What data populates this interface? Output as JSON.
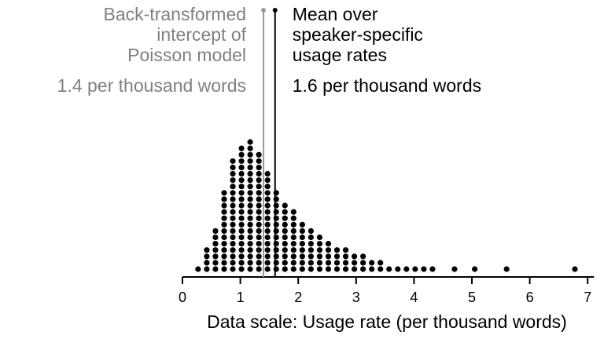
{
  "chart_data": {
    "type": "dotplot",
    "xlabel": "Data scale: Usage rate (per thousand words)",
    "xlim": [
      0,
      7
    ],
    "x_ticks": [
      0,
      1,
      2,
      3,
      4,
      5,
      6,
      7
    ],
    "x_tick_labels": [
      "0",
      "1",
      "2",
      "3",
      "4",
      "5",
      "6",
      "7"
    ],
    "bin_width": 0.15,
    "columns": [
      {
        "x": 0.27,
        "count": 1
      },
      {
        "x": 0.42,
        "count": 4
      },
      {
        "x": 0.57,
        "count": 7
      },
      {
        "x": 0.72,
        "count": 13
      },
      {
        "x": 0.87,
        "count": 18
      },
      {
        "x": 1.02,
        "count": 20
      },
      {
        "x": 1.17,
        "count": 21
      },
      {
        "x": 1.32,
        "count": 19
      },
      {
        "x": 1.47,
        "count": 16
      },
      {
        "x": 1.62,
        "count": 13
      },
      {
        "x": 1.77,
        "count": 11
      },
      {
        "x": 1.92,
        "count": 10
      },
      {
        "x": 2.07,
        "count": 8
      },
      {
        "x": 2.22,
        "count": 7
      },
      {
        "x": 2.37,
        "count": 6
      },
      {
        "x": 2.52,
        "count": 5
      },
      {
        "x": 2.67,
        "count": 4
      },
      {
        "x": 2.82,
        "count": 4
      },
      {
        "x": 2.97,
        "count": 3
      },
      {
        "x": 3.12,
        "count": 3
      },
      {
        "x": 3.27,
        "count": 2
      },
      {
        "x": 3.42,
        "count": 2
      },
      {
        "x": 3.57,
        "count": 1
      },
      {
        "x": 3.72,
        "count": 1
      },
      {
        "x": 3.87,
        "count": 1
      },
      {
        "x": 4.02,
        "count": 1
      },
      {
        "x": 4.17,
        "count": 1
      },
      {
        "x": 4.32,
        "count": 1
      },
      {
        "x": 4.7,
        "count": 1
      },
      {
        "x": 5.05,
        "count": 1
      },
      {
        "x": 5.6,
        "count": 1
      },
      {
        "x": 6.78,
        "count": 1
      }
    ],
    "reference_lines": [
      {
        "x": 1.4,
        "color": "#999999",
        "label_lines": [
          "Back-transformed",
          "intercept of",
          "Poisson model"
        ],
        "value_label": "1.4 per thousand words",
        "text_color": "#808080"
      },
      {
        "x": 1.6,
        "color": "#000000",
        "label_lines": [
          "Mean over",
          "speaker-specific",
          "usage rates"
        ],
        "value_label": "1.6 per thousand words",
        "text_color": "#000000"
      }
    ],
    "dot_color": "#000000",
    "grid": false
  }
}
